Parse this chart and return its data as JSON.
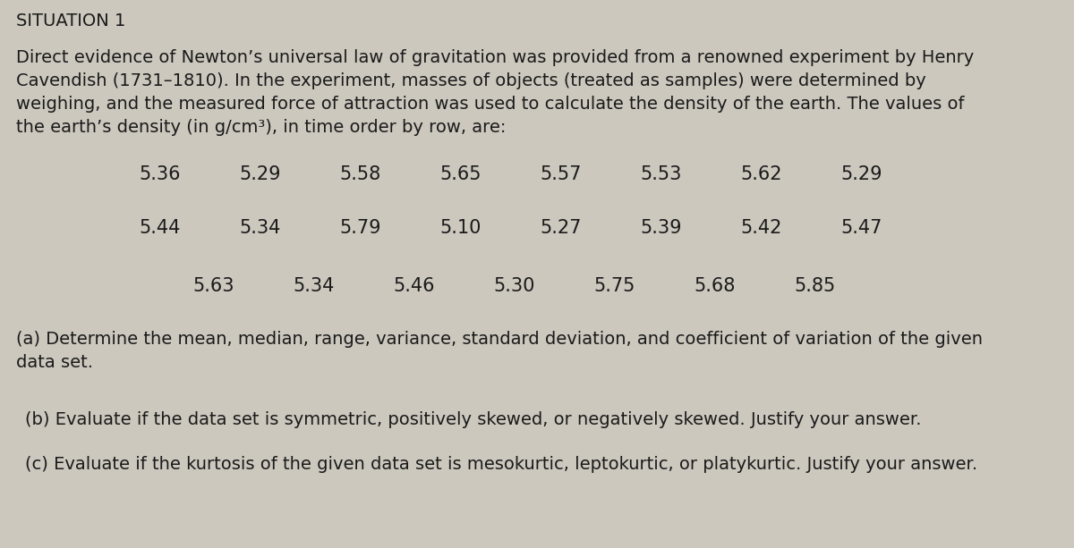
{
  "background_color": "#cdc8be",
  "title": "SITUATION 1",
  "paragraph_lines": [
    "Direct evidence of Newton’s universal law of gravitation was provided from a renowned experiment by Henry",
    "Cavendish (1731–1810). In the experiment, masses of objects (treated as samples) were determined by",
    "weighing, and the measured force of attraction was used to calculate the density of the earth. The values of",
    "the earth’s density (in g/cm³), in time order by row, are:"
  ],
  "row1": [
    "5.36",
    "5.29",
    "5.58",
    "5.65",
    "5.57",
    "5.53",
    "5.62",
    "5.29"
  ],
  "row2": [
    "5.44",
    "5.34",
    "5.79",
    "5.10",
    "5.27",
    "5.39",
    "5.42",
    "5.47"
  ],
  "row3": [
    "5.63",
    "5.34",
    "5.46",
    "5.30",
    "5.75",
    "5.68",
    "5.85"
  ],
  "question_a_lines": [
    "(a) Determine the mean, median, range, variance, standard deviation, and coefficient of variation of the given",
    "data set."
  ],
  "question_b": "(b) Evaluate if the data set is symmetric, positively skewed, or negatively skewed. Justify your answer.",
  "question_c": "(c) Evaluate if the kurtosis of the given data set is mesokurtic, leptokurtic, or platykurtic. Justify your answer.",
  "title_fontsize": 14,
  "body_fontsize": 14,
  "data_fontsize": 15,
  "question_fontsize": 14,
  "text_color": "#1a1a1a",
  "font_family": "DejaVu Sans",
  "fig_width": 12.0,
  "fig_height": 6.13,
  "dpi": 100
}
